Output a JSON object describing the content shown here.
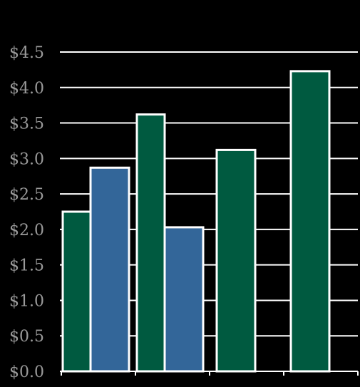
{
  "chart_data": {
    "type": "bar",
    "title": "",
    "xlabel": "",
    "ylabel": "",
    "ylim": [
      0,
      4.5
    ],
    "yticks": [
      "$0.0",
      "$0.5",
      "$1.0",
      "$1.5",
      "$2.0",
      "$2.5",
      "$3.0",
      "$3.5",
      "$4.0",
      "$4.5"
    ],
    "ytick_values": [
      0,
      0.5,
      1.0,
      1.5,
      2.0,
      2.5,
      3.0,
      3.5,
      4.0,
      4.5
    ],
    "grid": true,
    "groups": 4,
    "series": [
      {
        "color": "#005a40",
        "values": [
          2.25,
          3.62,
          3.12,
          4.23
        ]
      },
      {
        "color": "#336699",
        "values": [
          2.87,
          2.03,
          null,
          null
        ]
      }
    ]
  },
  "colors": {
    "background": "#000000",
    "gridline": "#ffffff",
    "bar_outline": "#ffffff",
    "tick_text": "#9a9a9a"
  }
}
